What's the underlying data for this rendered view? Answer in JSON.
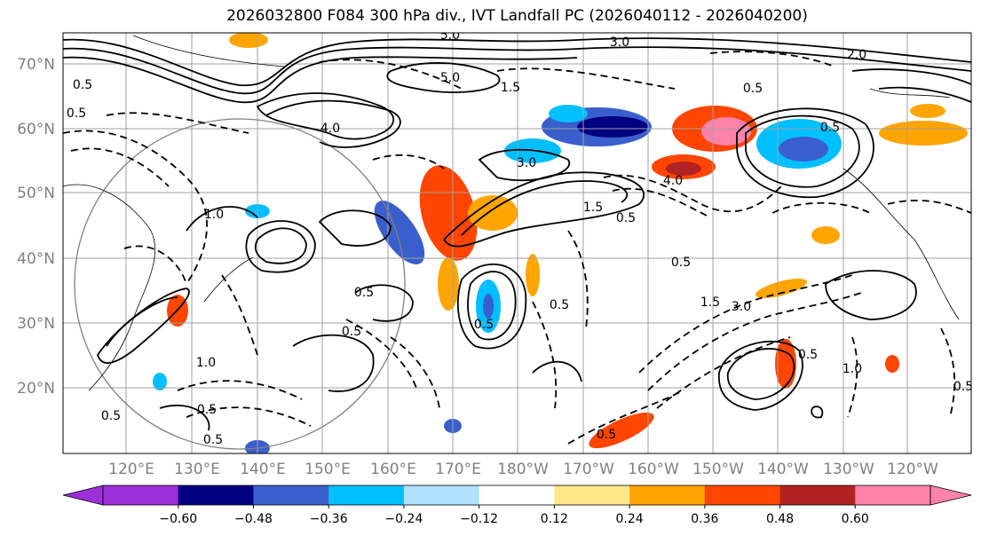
{
  "title": "2026032800 F084 300 hPa div., IVT Landfall PC (2026040112 - 2026040200)",
  "lat_labels": [
    "70°N",
    "60°N",
    "50°N",
    "40°N",
    "30°N",
    "20°N"
  ],
  "lon_labels": [
    "120°E",
    "130°E",
    "140°E",
    "150°E",
    "160°E",
    "170°E",
    "180°W",
    "170°W",
    "160°W",
    "150°W",
    "140°W",
    "130°W",
    "120°W"
  ],
  "colorbar": {
    "colors": [
      "#9b30d9",
      "#000080",
      "#3a5fcd",
      "#00bfff",
      "#b0e2ff",
      "#ffffff",
      "#ffe787",
      "#ffa500",
      "#ff4500",
      "#b22222",
      "#ff82ab"
    ],
    "ticks": [
      "−0.60",
      "−0.48",
      "−0.36",
      "−0.24",
      "−0.12",
      "0.12",
      "0.24",
      "0.36",
      "0.48",
      "0.60"
    ]
  },
  "contour_labels": [
    "5.0",
    "3.0",
    "2.0",
    "1.5",
    "0.5",
    "0.5",
    "4.0",
    "5.0",
    "3.0",
    "4.0",
    "1.5",
    "0.5",
    "1.0",
    "0.5",
    "0.5",
    "0.5",
    "1.5",
    "0.5",
    "3.0",
    "0.5",
    "1.0",
    "0.5",
    "0.5",
    "0.5",
    "0.5",
    "1.0",
    "0.5",
    "0.5",
    "0.5",
    "0.5"
  ]
}
